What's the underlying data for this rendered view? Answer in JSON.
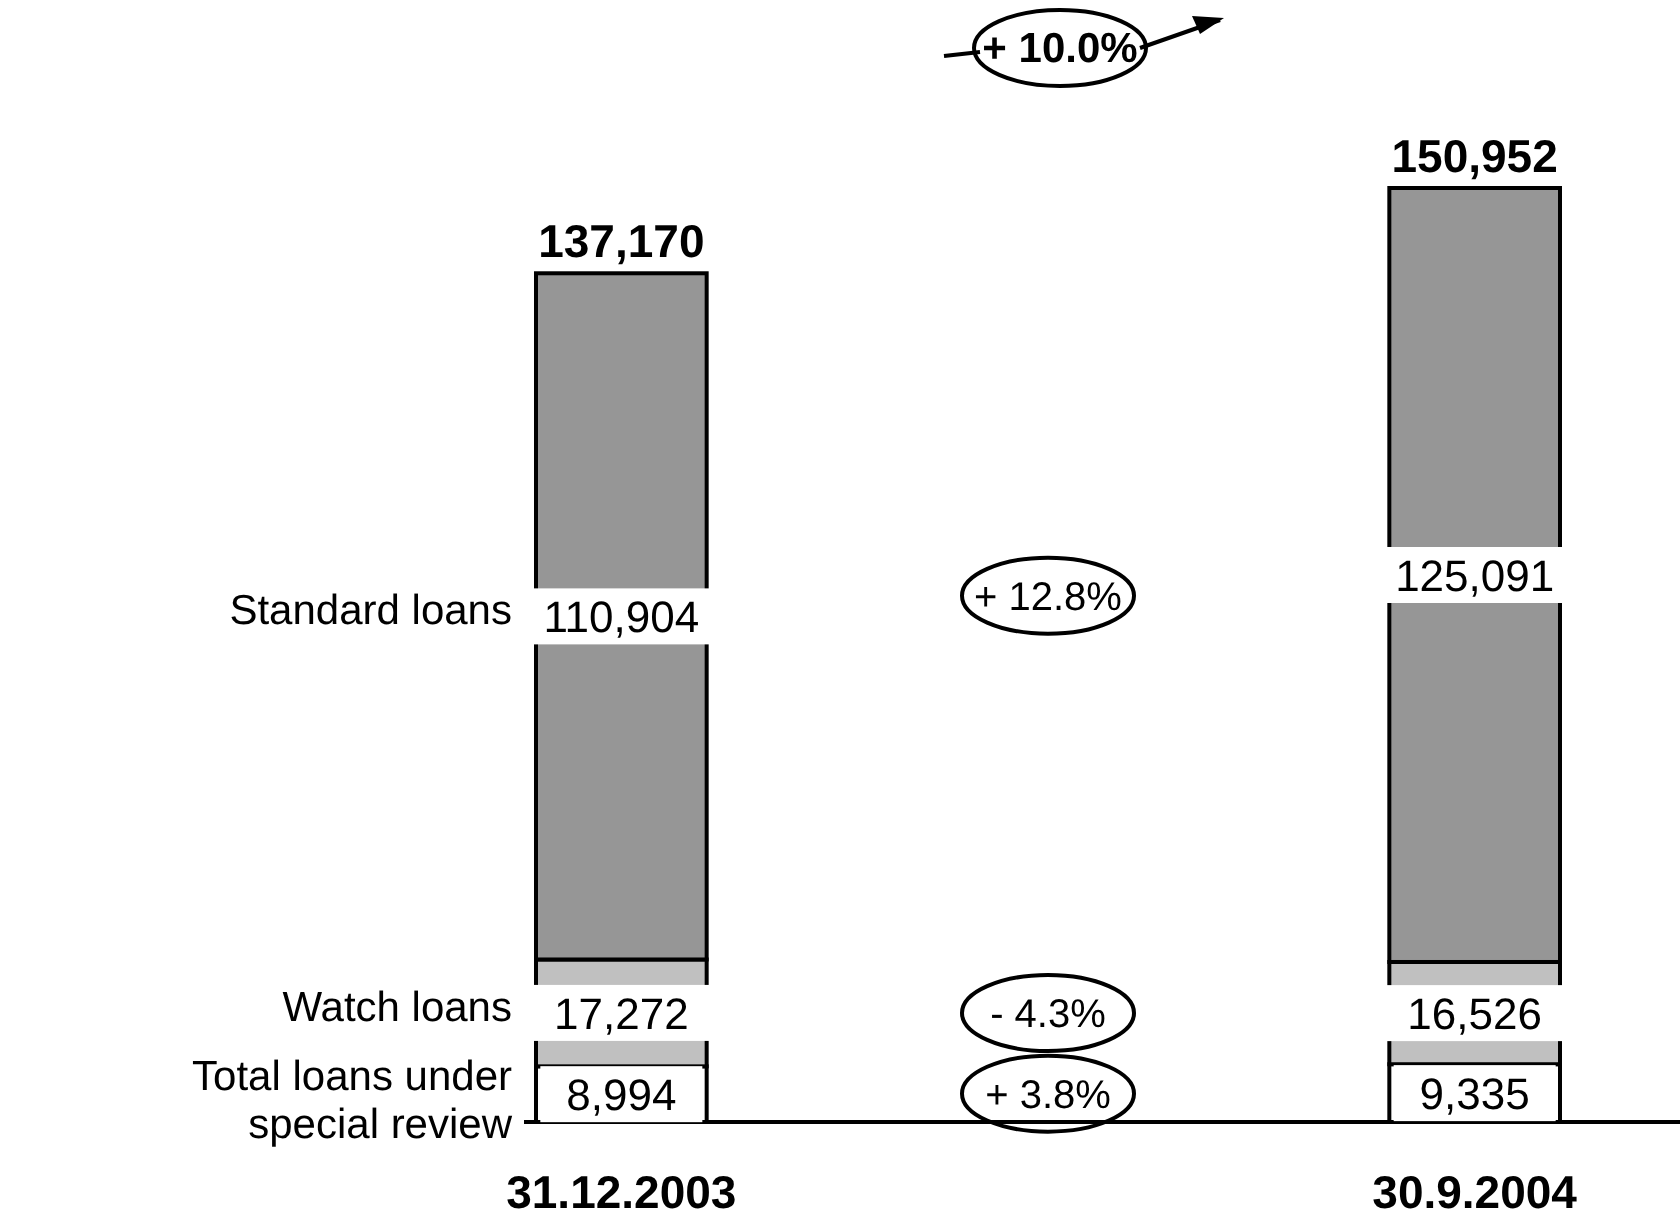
{
  "chart_data": {
    "type": "bar",
    "stacked": true,
    "categories": [
      "31.12.2003",
      "30.9.2004"
    ],
    "series": [
      {
        "name": "Total loans under special review",
        "color": "#ffffff",
        "values": [
          8994,
          9335
        ],
        "value_labels": [
          "8,994",
          "9,335"
        ]
      },
      {
        "name": "Watch loans",
        "color": "#c0c0c0",
        "values": [
          17272,
          16526
        ],
        "value_labels": [
          "17,272",
          "16,526"
        ]
      },
      {
        "name": "Standard loans",
        "color": "#969696",
        "values": [
          110904,
          125091
        ],
        "value_labels": [
          "110,904",
          "125,091"
        ]
      }
    ],
    "totals": [
      "137,170",
      "150,952"
    ],
    "legend": false,
    "annotations": [
      "+ 10.0%",
      "+ 12.8%",
      "- 4.3%",
      "+ 3.8%"
    ]
  }
}
